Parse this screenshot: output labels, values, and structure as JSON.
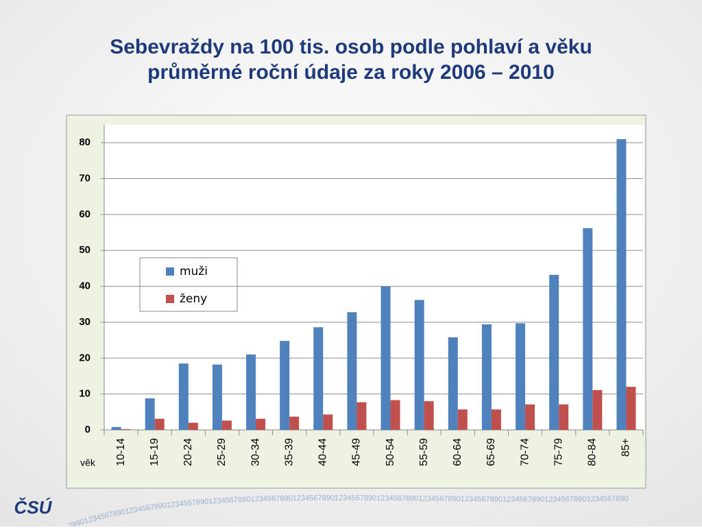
{
  "chart_data": {
    "type": "bar",
    "title": "Sebevraždy na 100 tis. osob podle pohlaví a věku",
    "subtitle": "průměrné roční údaje za roky 2006 – 2010",
    "x_label": "věk",
    "categories": [
      "10-14",
      "15-19",
      "20-24",
      "25-29",
      "30-34",
      "35-39",
      "40-44",
      "45-49",
      "50-54",
      "55-59",
      "60-64",
      "65-69",
      "70-74",
      "75-79",
      "80-84",
      "85+"
    ],
    "series": [
      {
        "name": "muži",
        "color": "#4f81bd",
        "values": [
          0.8,
          8.8,
          18.5,
          18.2,
          21,
          24.8,
          28.6,
          32.8,
          40,
          36.2,
          25.8,
          29.4,
          29.7,
          43.2,
          56.2,
          81
        ]
      },
      {
        "name": "ženy",
        "color": "#c0504d",
        "values": [
          0.2,
          3.1,
          2,
          2.6,
          3.1,
          3.7,
          4.3,
          7.7,
          8.3,
          8,
          5.7,
          5.7,
          7.1,
          7.1,
          11.1,
          12
        ]
      }
    ],
    "ylim": [
      0,
      85
    ],
    "yticks": [
      0,
      10,
      20,
      30,
      40,
      50,
      60,
      70,
      80
    ],
    "grid": true
  },
  "logo": "ČSÚ",
  "watermark": "78901234567890123456789012345678901234567890123456789012345678901234567890123456789012345678901234567890123456789012345678901234567890"
}
